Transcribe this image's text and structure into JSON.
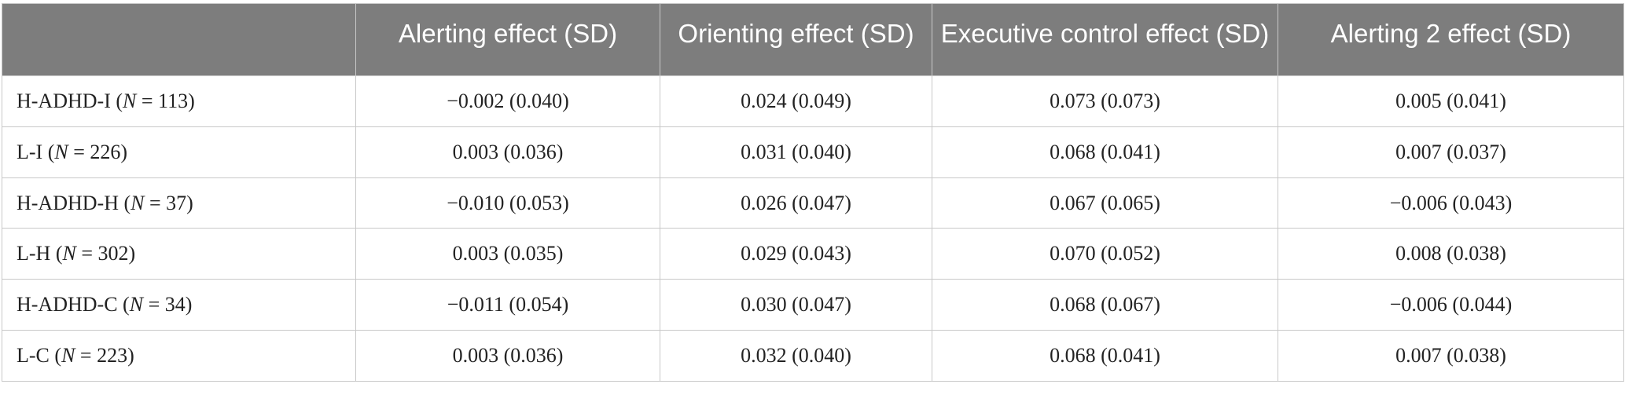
{
  "table": {
    "columns": [
      "",
      "Alerting effect (SD)",
      "Orienting effect (SD)",
      "Executive control effect (SD)",
      "Alerting 2 effect (SD)"
    ],
    "rows": [
      {
        "group": "H-ADHD-I",
        "n": "113",
        "values": [
          "−0.002 (0.040)",
          "0.024 (0.049)",
          "0.073 (0.073)",
          "0.005 (0.041)"
        ]
      },
      {
        "group": "L-I",
        "n": "226",
        "values": [
          "0.003 (0.036)",
          "0.031 (0.040)",
          "0.068 (0.041)",
          "0.007 (0.037)"
        ]
      },
      {
        "group": "H-ADHD-H",
        "n": "37",
        "values": [
          "−0.010 (0.053)",
          "0.026 (0.047)",
          "0.067 (0.065)",
          "−0.006 (0.043)"
        ]
      },
      {
        "group": "L-H",
        "n": "302",
        "values": [
          "0.003 (0.035)",
          "0.029 (0.043)",
          "0.070 (0.052)",
          "0.008 (0.038)"
        ]
      },
      {
        "group": "H-ADHD-C",
        "n": "34",
        "values": [
          "−0.011 (0.054)",
          "0.030 (0.047)",
          "0.068 (0.067)",
          "−0.006 (0.044)"
        ]
      },
      {
        "group": "L-C",
        "n": "223",
        "values": [
          "0.003 (0.036)",
          "0.032 (0.040)",
          "0.068 (0.041)",
          "0.007 (0.038)"
        ]
      }
    ],
    "n_symbol": "N",
    "eq": " = "
  }
}
